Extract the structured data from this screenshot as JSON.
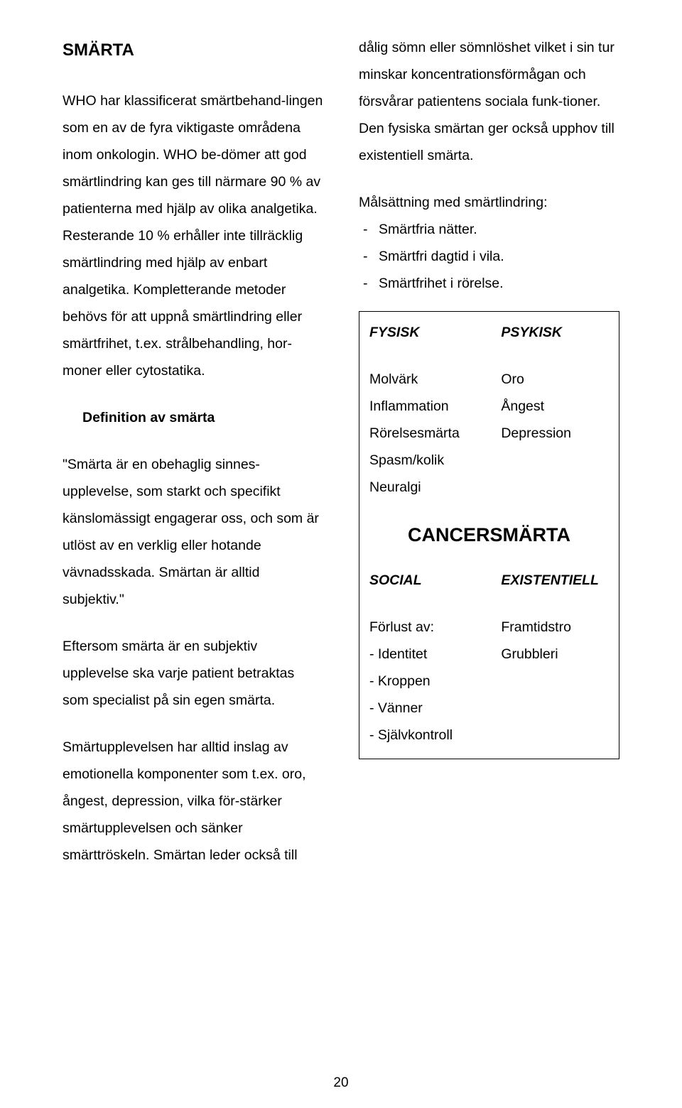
{
  "left": {
    "title": "SMÄRTA",
    "p1": "WHO har klassificerat smärtbehand-lingen som en av de fyra viktigaste områdena inom onkologin. WHO be-dömer att  god smärtlindring kan ges till närmare 90 % av patienterna med hjälp av olika analgetika. Resterande 10 % erhåller inte tillräcklig smärtlindring med hjälp av enbart analgetika. Kompletterande metoder behövs för att uppnå smärtlindring eller smärtfrihet, t.ex. strålbehandling, hor-moner eller cytostatika.",
    "defHead": "Definition av smärta",
    "p2": "\"Smärta är en obehaglig sinnes-upplevelse, som starkt och specifikt känslomässigt engagerar oss, och som är utlöst av en verklig eller hotande vävnadsskada. Smärtan är alltid subjektiv.\"",
    "p3": "Eftersom smärta är en subjektiv upplevelse ska varje patient betraktas som specialist på sin egen smärta.",
    "p4": "Smärtupplevelsen har alltid inslag av emotionella komponenter som t.ex. oro, ångest, depression, vilka för-stärker smärtupplevelsen och sänker smärttröskeln. Smärtan leder också till"
  },
  "right": {
    "p1": "dålig sömn eller sömnlöshet vilket i sin tur minskar koncentrationsförmågan och försvårar patientens sociala funk-tioner. Den fysiska smärtan ger också upphov till existentiell smärta.",
    "goalHead": "Målsättning med smärtlindring:",
    "goals": [
      "Smärtfria nätter.",
      "Smärtfri dagtid i vila.",
      "Smärtfrihet i rörelse."
    ]
  },
  "box": {
    "h1l": "FYSISK",
    "h1r": "PSYKISK",
    "l1": "Molvärk",
    "r1": "Oro",
    "l2": "Inflammation",
    "r2": "Ångest",
    "l3": "Rörelsesmärta",
    "r3": "Depression",
    "l4": "Spasm/kolik",
    "l5": "Neuralgi",
    "center": "CANCERSMÄRTA",
    "h2l": "SOCIAL",
    "h2r": "EXISTENTIELL",
    "b0": "Förlust av:",
    "br0": "Framtidstro",
    "b1": "- Identitet",
    "br1": "Grubbleri",
    "b2": "- Kroppen",
    "b3": "- Vänner",
    "b4": "- Självkontroll"
  },
  "pageNumber": "20"
}
